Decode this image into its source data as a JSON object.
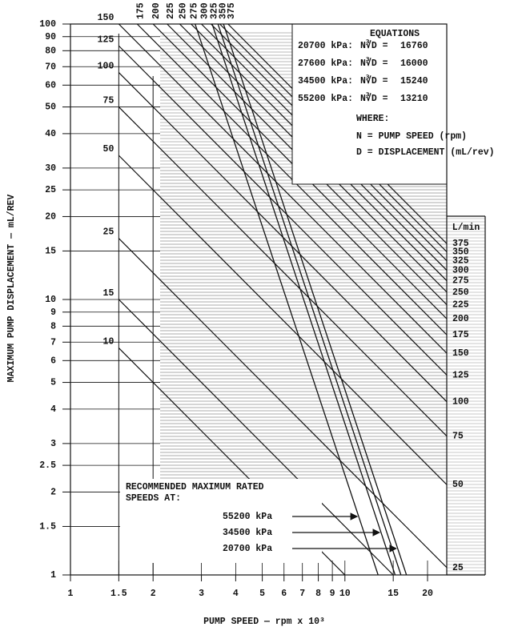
{
  "chart_data": {
    "type": "nomograph",
    "x_label": "PUMP SPEED — rpm x 10³",
    "y_label": "MAXIMUM PUMP DISPLACEMENT — mL/REV",
    "log_x": true,
    "log_y": true,
    "xlim": [
      1,
      23.5
    ],
    "ylim": [
      1,
      100
    ],
    "xticks": [
      1,
      1.5,
      2,
      3,
      4,
      5,
      6,
      7,
      8,
      9,
      10,
      15,
      20
    ],
    "yticks": [
      1,
      1.5,
      2,
      2.5,
      3,
      4,
      5,
      6,
      7,
      8,
      9,
      10,
      15,
      20,
      25,
      30,
      40,
      50,
      60,
      70,
      80,
      90,
      100
    ],
    "grid": true,
    "flow_unit": "L/min",
    "flows": [
      10,
      15,
      25,
      50,
      75,
      100,
      125,
      150,
      175,
      200,
      225,
      250,
      275,
      300,
      325,
      350,
      375
    ],
    "equations_title": "EQUATIONS",
    "equations": [
      {
        "label": "20700 kPa:",
        "formula": "N∛D =",
        "constant": 16760
      },
      {
        "label": "27600 kPa:",
        "formula": "N∛D =",
        "constant": 16000
      },
      {
        "label": "34500 kPa:",
        "formula": "N∛D =",
        "constant": 15240
      },
      {
        "label": "55200 kPa:",
        "formula": "N∛D =",
        "constant": 13210
      }
    ],
    "where_title": "WHERE:",
    "definitions": [
      "N = PUMP SPEED (rpm)",
      "D = DISPLACEMENT (mL/rev)"
    ],
    "recommended_title": [
      "RECOMMENDED MAXIMUM RATED",
      "SPEEDS AT:"
    ],
    "recommended": [
      "55200 kPa",
      "34500 kPa",
      "20700 kPa"
    ],
    "color": "#111111"
  }
}
